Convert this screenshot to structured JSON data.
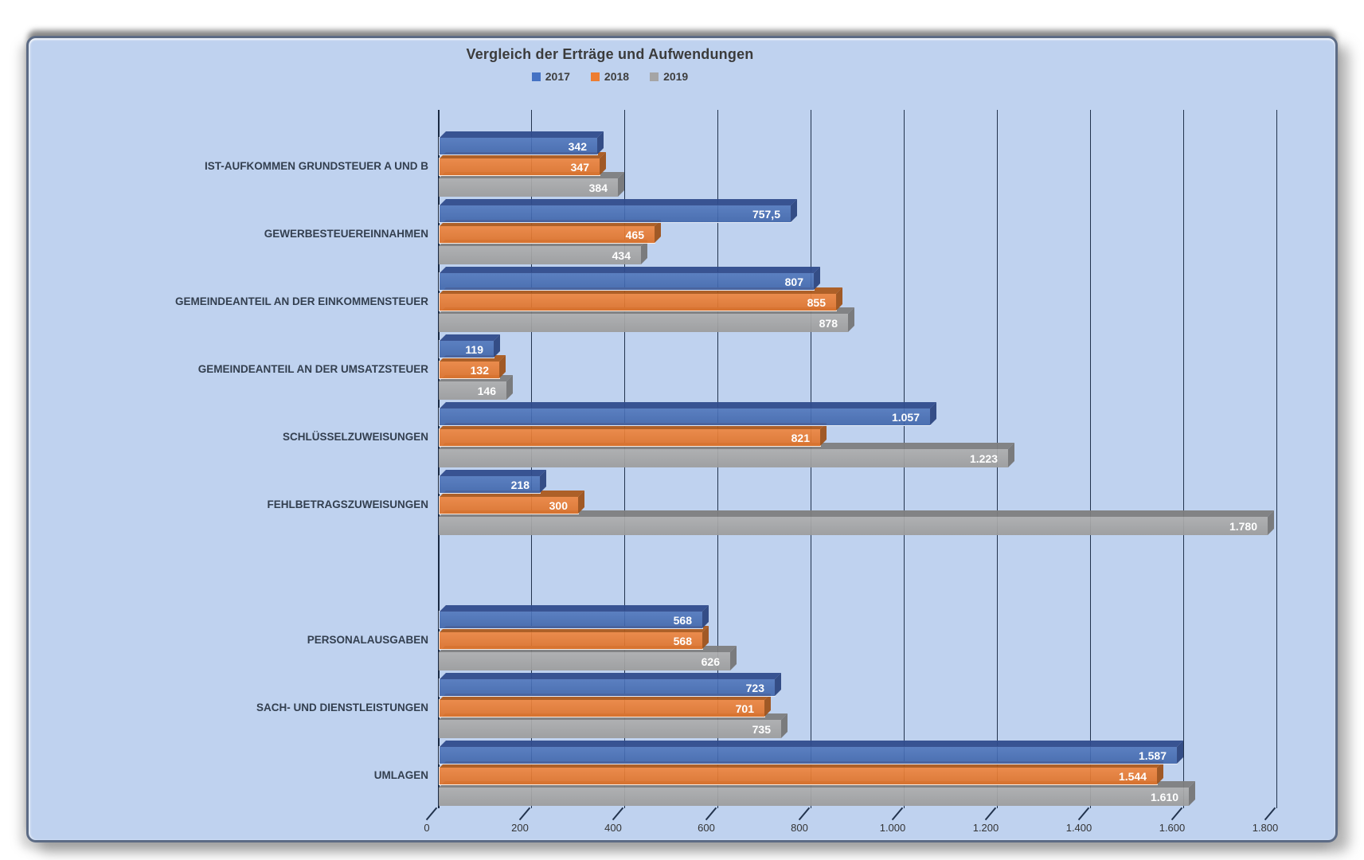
{
  "panel": {
    "background_color": "#bfd2ef",
    "border_color": "#5c6b85",
    "grid_color": "#22334d"
  },
  "chart": {
    "title": "Vergleich der Erträge und Aufwendungen",
    "legend": [
      {
        "label": "2017",
        "color": "#4472c4"
      },
      {
        "label": "2018",
        "color": "#ed7d31"
      },
      {
        "label": "2019",
        "color": "#a5a5a5"
      }
    ]
  },
  "chart_data": {
    "type": "bar",
    "orientation": "horizontal",
    "style": "3d",
    "title": "Vergleich der Erträge und Aufwendungen",
    "legend_position": "top",
    "grid": true,
    "xlim": [
      0,
      1800
    ],
    "x_ticks": [
      "0",
      "200",
      "400",
      "600",
      "800",
      "1.000",
      "1.200",
      "1.400",
      "1.600",
      "1.800"
    ],
    "categories": [
      "IST-AUFKOMMEN GRUNDSTEUER A UND B",
      "GEWERBESTEUEREINNAHMEN",
      "GEMEINDEANTEIL AN DER EINKOMMENSTEUER",
      "GEMEINDEANTEIL AN DER UMSATZSTEUER",
      "SCHLÜSSELZUWEISUNGEN",
      "FEHLBETRAGSZUWEISUNGEN",
      "",
      "PERSONALAUSGABEN",
      "SACH- UND DIENSTLEISTUNGEN",
      "UMLAGEN"
    ],
    "series": [
      {
        "name": "2017",
        "color": "#4472c4",
        "outlined": true,
        "faces": {
          "f1": "rgba(80,118,188,0.9)",
          "f2": "rgba(62,100,170,0.9)",
          "top": "rgba(48,76,140,0.95)",
          "side": "rgba(44,70,128,0.95)"
        },
        "values": [
          342,
          757.5,
          807,
          119,
          1057,
          218,
          null,
          568,
          723,
          1587
        ],
        "labels": [
          "342",
          "757,5",
          "807",
          "119",
          "1.057",
          "218",
          "",
          "568",
          "723",
          "1.587"
        ]
      },
      {
        "name": "2018",
        "color": "#ed7d31",
        "outlined": true,
        "faces": {
          "f1": "rgba(238,134,62,0.92)",
          "f2": "rgba(221,113,40,0.92)",
          "top": "rgba(172,90,28,0.95)",
          "side": "rgba(158,82,26,0.95)"
        },
        "values": [
          347,
          465,
          855,
          132,
          821,
          300,
          null,
          568,
          701,
          1544
        ],
        "labels": [
          "347",
          "465",
          "855",
          "132",
          "821",
          "300",
          "",
          "568",
          "701",
          "1.544"
        ]
      },
      {
        "name": "2019",
        "color": "#a5a5a5",
        "outlined": false,
        "faces": {
          "f1": "rgba(174,174,174,0.93)",
          "f2": "rgba(156,156,156,0.93)",
          "top": "rgba(126,126,126,0.95)",
          "side": "rgba(118,118,118,0.95)"
        },
        "values": [
          384,
          434,
          878,
          146,
          1223,
          1780,
          null,
          626,
          735,
          1610
        ],
        "labels": [
          "384",
          "434",
          "878",
          "146",
          "1.223",
          "1.780",
          "",
          "626",
          "735",
          "1.610"
        ]
      }
    ]
  }
}
